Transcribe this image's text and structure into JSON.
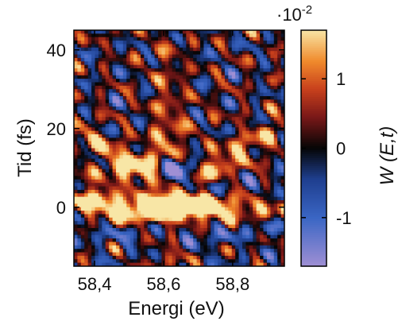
{
  "chart_data": {
    "type": "heatmap",
    "title": "",
    "xlabel": "Energi (eV)",
    "ylabel": "Tid (fs)",
    "xlim": [
      58.34,
      58.95
    ],
    "ylim": [
      -15,
      45
    ],
    "x_ticks": [
      {
        "value": 58.4,
        "label": "58,4"
      },
      {
        "value": 58.6,
        "label": "58,6"
      },
      {
        "value": 58.8,
        "label": "58,8"
      }
    ],
    "y_ticks": [
      {
        "value": 0,
        "label": "0"
      },
      {
        "value": 20,
        "label": "20"
      },
      {
        "value": 40,
        "label": "40"
      }
    ],
    "colorbar": {
      "label": "W (E,t)",
      "multiplier_label": "·10",
      "multiplier_exponent": "-2",
      "range": [
        -1.7,
        1.7
      ],
      "ticks": [
        {
          "value": 1,
          "label": "1"
        },
        {
          "value": 0,
          "label": "0"
        },
        {
          "value": -1,
          "label": "-1"
        }
      ],
      "colormap": [
        {
          "value": -1.7,
          "color": "#9f8fd4"
        },
        {
          "value": -1.0,
          "color": "#3a66c4"
        },
        {
          "value": -0.45,
          "color": "#1f3f8f"
        },
        {
          "value": 0.0,
          "color": "#050505"
        },
        {
          "value": 0.45,
          "color": "#7a1818"
        },
        {
          "value": 0.85,
          "color": "#c8401c"
        },
        {
          "value": 1.25,
          "color": "#f08a2c"
        },
        {
          "value": 1.7,
          "color": "#f8e6a6"
        }
      ]
    },
    "features": [
      {
        "name": "central horizontal band",
        "t": 0,
        "E_center": 58.63,
        "peak_value": 1.7
      },
      {
        "name": "negative lobe",
        "t": 8,
        "E_center": 58.63,
        "peak_value": -1.6
      },
      {
        "name": "vertical ridge",
        "E_center": 58.61,
        "t_range": [
          -12,
          45
        ],
        "peak_value": 1.1
      },
      {
        "name": "diagonal arms",
        "peak_value": 1.3
      }
    ]
  }
}
